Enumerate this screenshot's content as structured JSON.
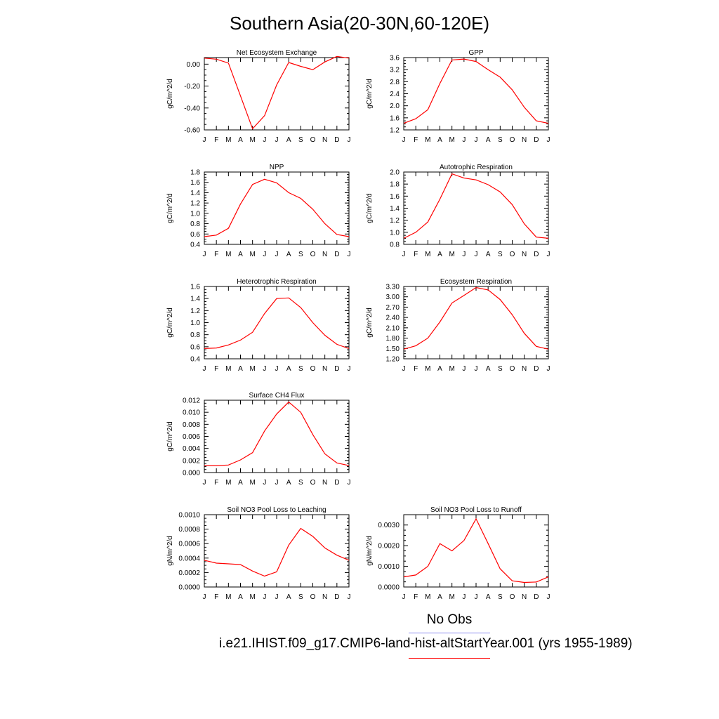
{
  "title": "Southern Asia(20-30N,60-120E)",
  "months": [
    "J",
    "F",
    "M",
    "A",
    "M",
    "J",
    "J",
    "A",
    "S",
    "O",
    "N",
    "D",
    "J"
  ],
  "legend": {
    "obs_label": "No Obs",
    "obs_color": "#8a8aee",
    "case_label": "i.e21.IHIST.f09_g17.CMIP6-land-hist-altStartYear.001 (yrs 1955-1989)",
    "case_color": "#ff0000"
  },
  "chart_data": [
    {
      "type": "line",
      "title": "Net Ecosystem Exchange",
      "ylabel": "gC/m^2/d",
      "ylim": [
        -0.6,
        0.06
      ],
      "yticks": [
        "0.00",
        "-0.20",
        "-0.40",
        "-0.60"
      ],
      "values": [
        0.055,
        0.045,
        0.01,
        -0.29,
        -0.59,
        -0.47,
        -0.19,
        0.015,
        -0.02,
        -0.05,
        0.02,
        0.07,
        0.055
      ]
    },
    {
      "type": "line",
      "title": "GPP",
      "ylabel": "gC/m^2/d",
      "ylim": [
        1.2,
        3.6
      ],
      "yticks": [
        "1.2",
        "1.6",
        "2.0",
        "2.4",
        "2.8",
        "3.2",
        "3.6"
      ],
      "values": [
        1.42,
        1.57,
        1.87,
        2.74,
        3.52,
        3.55,
        3.47,
        3.2,
        2.95,
        2.53,
        1.95,
        1.5,
        1.42
      ]
    },
    {
      "type": "line",
      "title": "NPP",
      "ylabel": "gC/m^2/d",
      "ylim": [
        0.4,
        1.8
      ],
      "yticks": [
        "0.4",
        "0.6",
        "0.8",
        "1.0",
        "1.2",
        "1.4",
        "1.6",
        "1.8"
      ],
      "values": [
        0.55,
        0.58,
        0.71,
        1.18,
        1.56,
        1.66,
        1.59,
        1.4,
        1.29,
        1.08,
        0.8,
        0.59,
        0.55
      ]
    },
    {
      "type": "line",
      "title": "Autotrophic Respiration",
      "ylabel": "gC/m^2/d",
      "ylim": [
        0.8,
        2.0
      ],
      "yticks": [
        "0.8",
        "1.0",
        "1.2",
        "1.4",
        "1.6",
        "1.8",
        "2.0"
      ],
      "values": [
        0.9,
        1.0,
        1.17,
        1.55,
        1.97,
        1.9,
        1.87,
        1.79,
        1.67,
        1.46,
        1.14,
        0.92,
        0.9
      ]
    },
    {
      "type": "line",
      "title": "Heterotrophic Respiration",
      "ylabel": "gC/m^2/d",
      "ylim": [
        0.4,
        1.6
      ],
      "yticks": [
        "0.4",
        "0.6",
        "0.8",
        "1.0",
        "1.2",
        "1.4",
        "1.6"
      ],
      "values": [
        0.57,
        0.58,
        0.63,
        0.71,
        0.84,
        1.15,
        1.4,
        1.41,
        1.25,
        1.0,
        0.79,
        0.64,
        0.57
      ]
    },
    {
      "type": "line",
      "title": "Ecosystem Respiration",
      "ylabel": "gC/m^2/d",
      "ylim": [
        1.2,
        3.3
      ],
      "yticks": [
        "1.20",
        "1.50",
        "1.80",
        "2.10",
        "2.40",
        "2.70",
        "3.00",
        "3.30"
      ],
      "values": [
        1.48,
        1.58,
        1.8,
        2.27,
        2.82,
        3.04,
        3.27,
        3.2,
        2.92,
        2.48,
        1.94,
        1.56,
        1.48
      ]
    },
    {
      "type": "line",
      "title": "Surface CH4 Flux",
      "ylabel": "gC/m^2/d",
      "ylim": [
        0,
        0.012
      ],
      "yticks": [
        "0.000",
        "0.002",
        "0.004",
        "0.006",
        "0.008",
        "0.010",
        "0.012"
      ],
      "values": [
        0.00115,
        0.00115,
        0.00125,
        0.0021,
        0.0033,
        0.0069,
        0.0097,
        0.0117,
        0.01,
        0.0063,
        0.0031,
        0.0016,
        0.00115
      ]
    },
    null,
    {
      "type": "line",
      "title": "Soil NO3 Pool Loss to Leaching",
      "ylabel": "gN/m^2/d",
      "ylim": [
        0,
        0.001
      ],
      "yticks": [
        "0.0000",
        "0.0002",
        "0.0004",
        "0.0006",
        "0.0008",
        "0.0010"
      ],
      "values": [
        0.00037,
        0.00033,
        0.00032,
        0.00031,
        0.00022,
        0.00015,
        0.00021,
        0.00058,
        0.00081,
        0.0007,
        0.00054,
        0.00044,
        0.00037
      ]
    },
    {
      "type": "line",
      "title": "Soil NO3 Pool Loss to Runoff",
      "ylabel": "gN/m^2/d",
      "ylim": [
        0,
        0.0035
      ],
      "yticks": [
        "0.0000",
        "0.0010",
        "0.0020",
        "0.0030"
      ],
      "ytick_values": [
        0,
        0.001,
        0.002,
        0.003
      ],
      "values": [
        0.00049,
        0.00058,
        0.001,
        0.0021,
        0.00175,
        0.00225,
        0.0033,
        0.0021,
        0.00088,
        0.0003,
        0.00022,
        0.00024,
        0.00049
      ]
    }
  ]
}
